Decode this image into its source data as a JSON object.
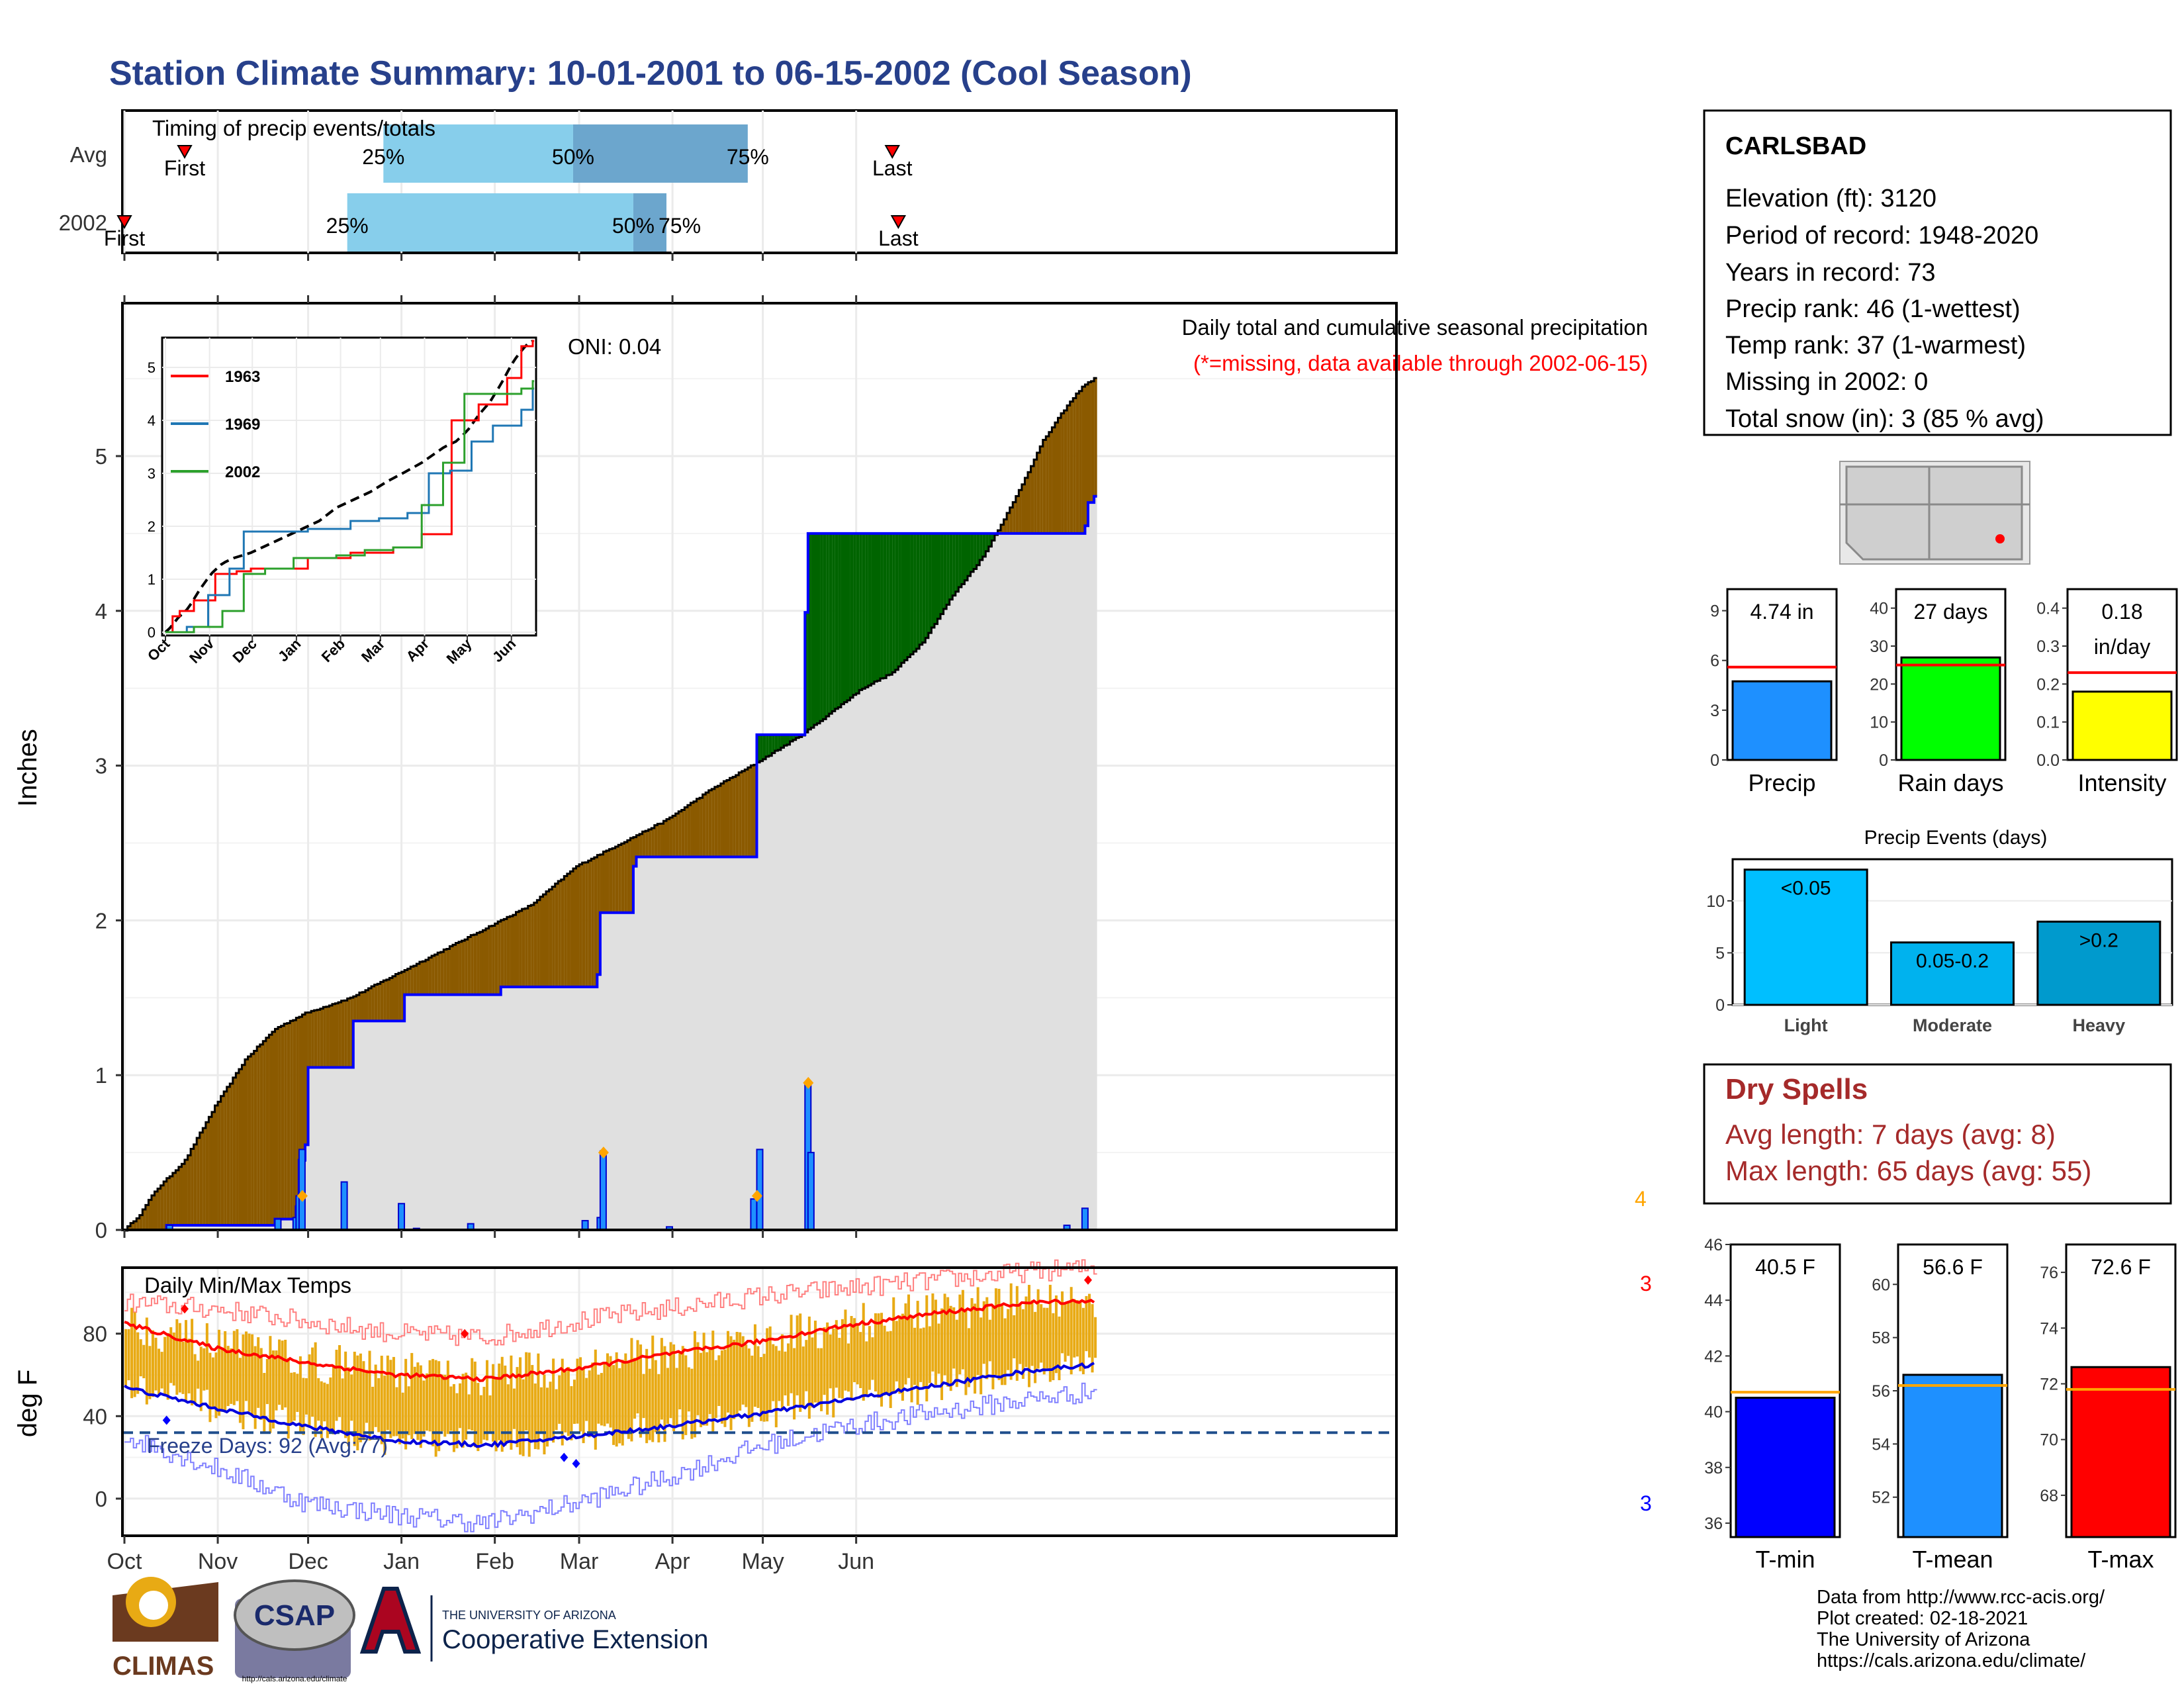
{
  "title": "Station Climate Summary: 10-01-2001 to 06-15-2002 (Cool Season)",
  "ylabel_precip": "Inches",
  "ylabel_temp": "deg F",
  "station": {
    "name": "CARLSBAD",
    "lines": [
      "Elevation (ft): 3120",
      "Period of record: 1948-2020",
      "Years in record: 73",
      "Precip rank: 46 (1-wettest)",
      "Temp rank: 37 (1-warmest)",
      "Missing in 2002: 0",
      "Total snow (in): 3 (85 % avg)"
    ]
  },
  "dry_spells": {
    "title": "Dry Spells",
    "avg": "Avg length: 7 days (avg: 8)",
    "max": "Max length: 65 days (avg: 55)"
  },
  "credits": [
    "Data from http://www.rcc-acis.org/",
    "Plot created: 02-18-2021",
    "The University of Arizona",
    "https://cals.arizona.edu/climate/"
  ],
  "logos": {
    "climas": "CLIMAS",
    "csap": "CSAP",
    "csap_url": "http://cals.arizona.edu/climate",
    "ua_small": "THE UNIVERSITY OF ARIZONA",
    "ua_big": "Cooperative Extension"
  },
  "colors": {
    "title": "#27408B",
    "above_avg": "#006400",
    "below_avg": "#8B5A00",
    "gray_fill": "#E0E0E0",
    "line_2002": "#0000FF",
    "temp_bar": "#E8AA14",
    "tmax_avg": "#FF0000",
    "tmin_avg": "#0000DD",
    "dry_spell": "#A52A2A"
  },
  "chart_data": [
    {
      "id": "timing",
      "type": "bar",
      "title": "Timing of precip events/totals",
      "categories": [
        "Avg",
        "2002"
      ],
      "x_months": [
        "Oct",
        "Nov",
        "Dec",
        "Jan",
        "Feb",
        "Mar",
        "Apr",
        "May",
        "Jun"
      ],
      "avg": {
        "first": "Oct 21",
        "p25": "Dec 26",
        "p50": "Feb 27",
        "p75": "Apr 26",
        "last": "Jun 13",
        "first_label": "First",
        "last_label": "Last"
      },
      "y2002": {
        "first": "Oct 1",
        "p25": "Dec 14",
        "p50": "Mar 19",
        "p75": "Mar 30",
        "last": "Jun 15",
        "first_label": "First",
        "last_label": "Last"
      },
      "pct_labels": [
        "25%",
        "50%",
        "75%"
      ]
    },
    {
      "id": "precip",
      "type": "area",
      "title": "Daily total and cumulative seasonal precipitation",
      "subtitle": "(*=missing, data available through 2002-06-15)",
      "oni": "ONI: 0.04",
      "ylabel": "Inches",
      "ylim": [
        0,
        5.9
      ],
      "yticks": [
        0,
        1,
        2,
        3,
        4,
        5
      ],
      "x_months": [
        "Oct",
        "Nov",
        "Dec",
        "Jan",
        "Feb",
        "Mar",
        "Apr",
        "May",
        "Jun"
      ],
      "avg_cumulative": [
        [
          0,
          0
        ],
        [
          5,
          0.1
        ],
        [
          10,
          0.25
        ],
        [
          20,
          0.45
        ],
        [
          30,
          0.8
        ],
        [
          40,
          1.1
        ],
        [
          50,
          1.3
        ],
        [
          60,
          1.4
        ],
        [
          75,
          1.5
        ],
        [
          90,
          1.65
        ],
        [
          105,
          1.8
        ],
        [
          120,
          1.95
        ],
        [
          135,
          2.1
        ],
        [
          150,
          2.35
        ],
        [
          165,
          2.5
        ],
        [
          180,
          2.65
        ],
        [
          195,
          2.85
        ],
        [
          210,
          3.02
        ],
        [
          225,
          3.2
        ],
        [
          235,
          3.35
        ],
        [
          245,
          3.5
        ],
        [
          255,
          3.6
        ],
        [
          265,
          3.8
        ],
        [
          275,
          4.1
        ],
        [
          285,
          4.35
        ],
        [
          295,
          4.7
        ],
        [
          305,
          5.1
        ],
        [
          312,
          5.3
        ],
        [
          318,
          5.45
        ],
        [
          322,
          5.5
        ]
      ],
      "y2002_cumulative": [
        [
          0,
          0
        ],
        [
          14,
          0.03
        ],
        [
          50,
          0.07
        ],
        [
          57,
          0.15
        ],
        [
          58,
          0.45
        ],
        [
          60,
          0.55
        ],
        [
          61,
          1.05
        ],
        [
          75,
          1.05
        ],
        [
          76,
          1.35
        ],
        [
          89,
          1.35
        ],
        [
          93,
          1.52
        ],
        [
          110,
          1.52
        ],
        [
          125,
          1.57
        ],
        [
          152,
          1.57
        ],
        [
          157,
          1.65
        ],
        [
          158,
          2.05
        ],
        [
          169,
          2.35
        ],
        [
          170,
          2.41
        ],
        [
          196,
          2.41
        ],
        [
          209,
          2.41
        ],
        [
          210,
          3.2
        ],
        [
          225,
          3.2
        ],
        [
          226,
          3.99
        ],
        [
          227,
          4.5
        ],
        [
          288,
          4.5
        ],
        [
          319,
          4.55
        ],
        [
          320,
          4.7
        ],
        [
          322,
          4.74
        ]
      ],
      "daily_2002": [
        [
          14,
          0.03
        ],
        [
          50,
          0.07
        ],
        [
          56,
          0.08
        ],
        [
          57,
          0.22
        ],
        [
          58,
          0.52
        ],
        [
          72,
          0.31
        ],
        [
          91,
          0.17
        ],
        [
          96,
          0.01
        ],
        [
          114,
          0.04
        ],
        [
          152,
          0.06
        ],
        [
          157,
          0.08
        ],
        [
          158,
          0.51
        ],
        [
          180,
          0.02
        ],
        [
          208,
          0.2
        ],
        [
          210,
          0.52
        ],
        [
          226,
          0.95
        ],
        [
          227,
          0.5
        ],
        [
          312,
          0.03
        ],
        [
          318,
          0.14
        ]
      ],
      "markers": [
        [
          58,
          0.22
        ],
        [
          158,
          0.5
        ],
        [
          209,
          0.22
        ],
        [
          226,
          0.95
        ]
      ],
      "corner_label": "4"
    },
    {
      "id": "inset",
      "type": "line",
      "series": [
        {
          "name": "1963"
        },
        {
          "name": "1969"
        },
        {
          "name": "2002"
        }
      ],
      "yticks": [
        0,
        1,
        2,
        3,
        4,
        5
      ],
      "x_months": [
        "Oct",
        "Nov",
        "Dec",
        "Jan",
        "Feb",
        "Mar",
        "Apr",
        "May",
        "Jun"
      ]
    },
    {
      "id": "summary_bars",
      "type": "bar",
      "panels": [
        {
          "label": "Precip",
          "value": 4.74,
          "text": "4.74 in",
          "avg": 5.6,
          "ylim": [
            0,
            10.3
          ],
          "yticks": [
            0,
            3,
            6,
            9
          ],
          "color": "#1E90FF"
        },
        {
          "label": "Rain days",
          "value": 27,
          "text": "27 days",
          "avg": 25,
          "ylim": [
            0,
            45
          ],
          "yticks": [
            0,
            10,
            20,
            30,
            40
          ],
          "color": "#00FF00"
        },
        {
          "label": "Intensity",
          "value": 0.18,
          "text": "0.18 in/day",
          "avg": 0.23,
          "ylim": [
            0,
            0.45
          ],
          "yticks": [
            "0.0",
            "0.1",
            "0.2",
            "0.3",
            "0.4"
          ],
          "color": "#FFFF00"
        }
      ]
    },
    {
      "id": "precip_events",
      "type": "bar",
      "title": "Precip Events (days)",
      "categories": [
        "Light",
        "Moderate",
        "Heavy"
      ],
      "values": [
        13,
        6,
        8
      ],
      "bar_labels": [
        "<0.05",
        "0.05-0.2",
        ">0.2"
      ],
      "yticks": [
        0,
        5,
        10
      ],
      "ylim": [
        0,
        14
      ]
    },
    {
      "id": "temps",
      "type": "bar",
      "title": "Daily Min/Max Temps",
      "ylabel": "deg F",
      "ylim": [
        -18,
        112
      ],
      "yticks": [
        0,
        40,
        80
      ],
      "freeze_label": "Freeze Days: 92 (Avg:77)",
      "freeze_line": 32,
      "corner_top": "3",
      "corner_bottom": "3",
      "x_months": [
        "Oct",
        "Nov",
        "Dec",
        "Jan",
        "Feb",
        "Mar",
        "Apr",
        "May",
        "Jun"
      ],
      "avg_tmax": [
        [
          0,
          85
        ],
        [
          30,
          73
        ],
        [
          60,
          66
        ],
        [
          90,
          60
        ],
        [
          120,
          58
        ],
        [
          150,
          63
        ],
        [
          180,
          70
        ],
        [
          210,
          76
        ],
        [
          240,
          84
        ],
        [
          270,
          90
        ],
        [
          300,
          95
        ],
        [
          322,
          96
        ]
      ],
      "avg_tmin": [
        [
          0,
          54
        ],
        [
          30,
          44
        ],
        [
          60,
          35
        ],
        [
          90,
          28
        ],
        [
          120,
          26
        ],
        [
          150,
          30
        ],
        [
          180,
          35
        ],
        [
          210,
          41
        ],
        [
          240,
          48
        ],
        [
          270,
          55
        ],
        [
          300,
          62
        ],
        [
          322,
          65
        ]
      ],
      "record_max": [
        [
          0,
          95
        ],
        [
          30,
          92
        ],
        [
          60,
          86
        ],
        [
          90,
          80
        ],
        [
          120,
          78
        ],
        [
          150,
          86
        ],
        [
          180,
          92
        ],
        [
          210,
          98
        ],
        [
          240,
          102
        ],
        [
          270,
          106
        ],
        [
          300,
          110
        ],
        [
          322,
          112
        ]
      ],
      "record_min": [
        [
          0,
          30
        ],
        [
          30,
          15
        ],
        [
          60,
          -2
        ],
        [
          90,
          -8
        ],
        [
          120,
          -12
        ],
        [
          150,
          -2
        ],
        [
          180,
          10
        ],
        [
          210,
          25
        ],
        [
          240,
          35
        ],
        [
          270,
          42
        ],
        [
          300,
          48
        ],
        [
          322,
          52
        ]
      ]
    },
    {
      "id": "temp_summary",
      "type": "bar",
      "panels": [
        {
          "label": "T-min",
          "value": 40.5,
          "text": "40.5 F",
          "avg": 40.7,
          "ylim": [
            35.5,
            46.0
          ],
          "yticks": [
            36,
            38,
            40,
            42,
            44,
            46
          ],
          "color": "#0000FF"
        },
        {
          "label": "T-mean",
          "value": 56.6,
          "text": "56.6 F",
          "avg": 56.2,
          "ylim": [
            50.5,
            61.5
          ],
          "yticks": [
            52,
            54,
            56,
            58,
            60
          ],
          "color": "#1E90FF"
        },
        {
          "label": "T-max",
          "value": 72.6,
          "text": "72.6 F",
          "avg": 71.8,
          "ylim": [
            66.5,
            77.0
          ],
          "yticks": [
            68,
            70,
            72,
            74,
            76
          ],
          "color": "#FF0000"
        }
      ]
    }
  ]
}
